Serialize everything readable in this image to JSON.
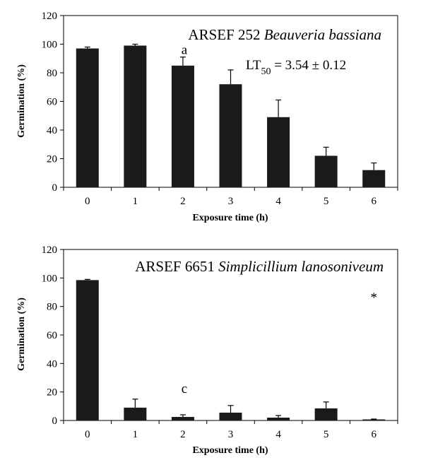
{
  "chart_data": [
    {
      "type": "bar",
      "title": "ARSEF 252 ",
      "title_italic": "Beauveria bassiana",
      "xlabel": "Exposure time (h)",
      "ylabel": "Germination (%)",
      "categories": [
        "0",
        "1",
        "2",
        "3",
        "4",
        "5",
        "6"
      ],
      "values": [
        97,
        99,
        85,
        72,
        49,
        22,
        12
      ],
      "errors": [
        1,
        1,
        6,
        10,
        12,
        6,
        5
      ],
      "ylim": [
        0,
        120
      ],
      "yticks": [
        "0",
        "20",
        "40",
        "60",
        "80",
        "100",
        "120"
      ],
      "annotations": {
        "letter": "a",
        "letter_category": "2",
        "lt_prefix": "LT",
        "lt_subscript": "50",
        "lt_value": " = 3.54 ± 0.12"
      },
      "bar_color": "#1a1a1a"
    },
    {
      "type": "bar",
      "title": "ARSEF 6651 ",
      "title_italic": "Simplicillium lanosoniveum",
      "xlabel": "Exposure time (h)",
      "ylabel": "Germination (%)",
      "categories": [
        "0",
        "1",
        "2",
        "3",
        "4",
        "5",
        "6"
      ],
      "values": [
        98.5,
        9,
        2.5,
        5.5,
        2,
        8.5,
        0.5
      ],
      "errors": [
        0.5,
        6,
        1.5,
        5,
        1.5,
        4.5,
        0.5
      ],
      "ylim": [
        0,
        120
      ],
      "yticks": [
        "0",
        "20",
        "40",
        "60",
        "80",
        "100",
        "120"
      ],
      "annotations": {
        "letter": "c",
        "letter_category": "2",
        "star": "*",
        "star_category": "6"
      },
      "bar_color": "#1a1a1a"
    }
  ]
}
